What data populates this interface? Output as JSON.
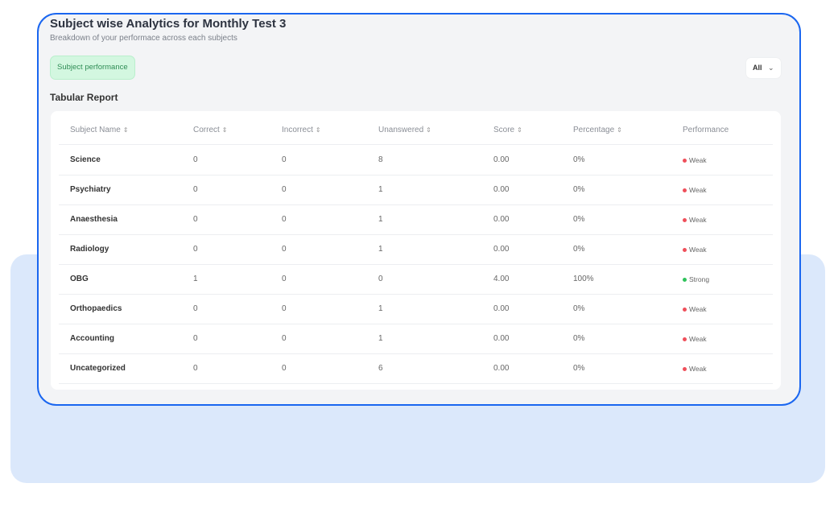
{
  "header": {
    "title": "Subject wise Analytics for Monthly Test 3",
    "subtitle": "Breakdown of your performace across each subjects"
  },
  "tab": {
    "label": "Subject performance"
  },
  "filter": {
    "selected": "All"
  },
  "section_title": "Tabular Report",
  "colors": {
    "weak": "#ef4f5a",
    "strong": "#2fc25b",
    "border": "#1a66f0"
  },
  "table": {
    "columns": [
      "Subject Name",
      "Correct",
      "Incorrect",
      "Unanswered",
      "Score",
      "Percentage",
      "Performance"
    ],
    "sortable": [
      true,
      true,
      true,
      true,
      true,
      true,
      false
    ],
    "rows": [
      [
        "Science",
        "0",
        "0",
        "8",
        "0.00",
        "0%",
        "Weak"
      ],
      [
        "Psychiatry",
        "0",
        "0",
        "1",
        "0.00",
        "0%",
        "Weak"
      ],
      [
        "Anaesthesia",
        "0",
        "0",
        "1",
        "0.00",
        "0%",
        "Weak"
      ],
      [
        "Radiology",
        "0",
        "0",
        "1",
        "0.00",
        "0%",
        "Weak"
      ],
      [
        "OBG",
        "1",
        "0",
        "0",
        "4.00",
        "100%",
        "Strong"
      ],
      [
        "Orthopaedics",
        "0",
        "0",
        "1",
        "0.00",
        "0%",
        "Weak"
      ],
      [
        "Accounting",
        "0",
        "0",
        "1",
        "0.00",
        "0%",
        "Weak"
      ],
      [
        "Uncategorized",
        "0",
        "0",
        "6",
        "0.00",
        "0%",
        "Weak"
      ]
    ]
  }
}
